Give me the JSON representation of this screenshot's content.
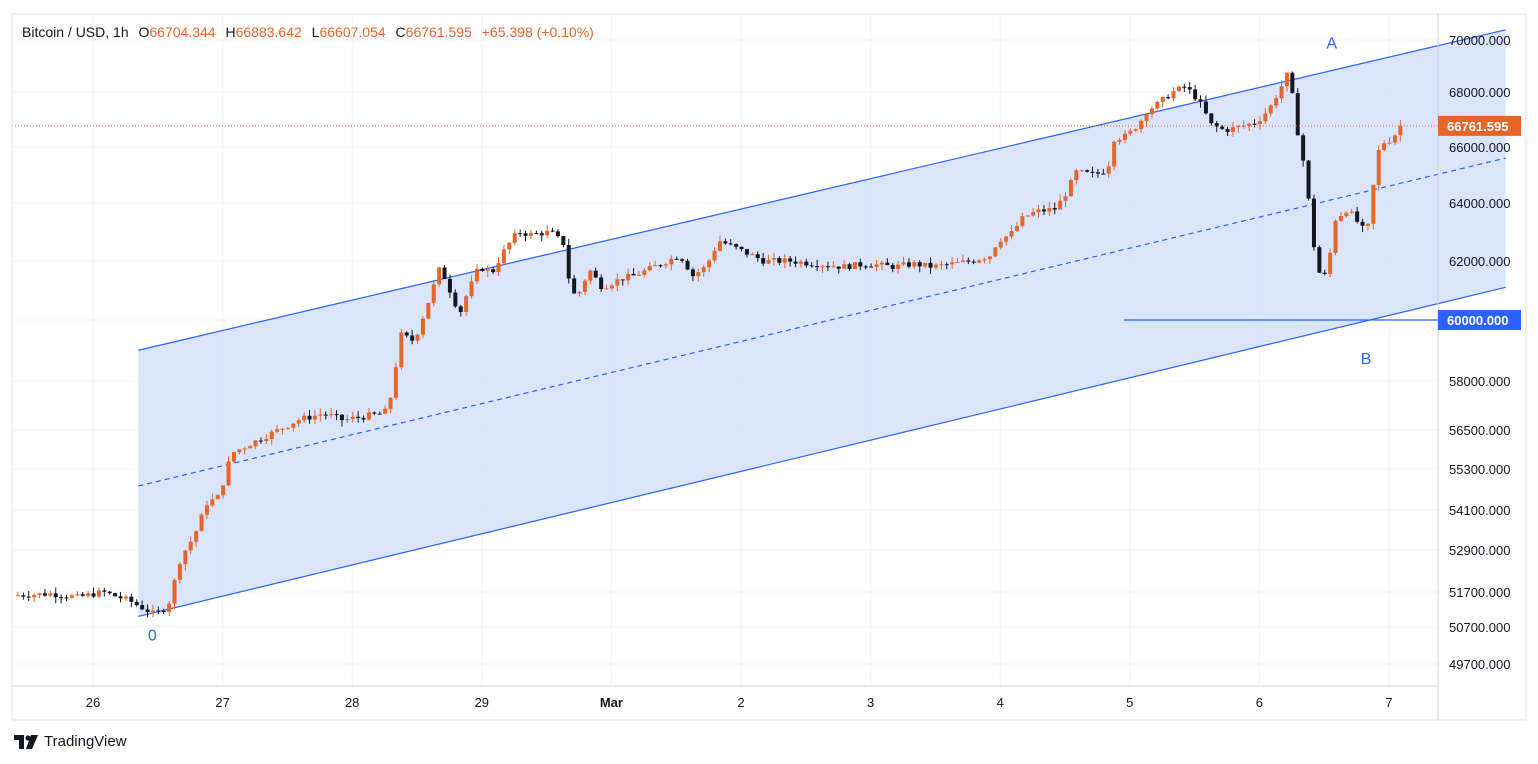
{
  "header": {
    "symbol": "Bitcoin / USD",
    "interval": "1h",
    "open_label": "O",
    "open": "66704.344",
    "high_label": "H",
    "high": "66883.642",
    "low_label": "L",
    "low": "66607.054",
    "close_label": "C",
    "close": "66761.595",
    "change": "+65.398 (+0.10%)"
  },
  "brand": {
    "name": "TradingView"
  },
  "colors": {
    "up": "#e8652a",
    "down": "#131722",
    "channel_line": "#2962ff",
    "channel_fill": "#d6e1fb",
    "last_price_label": "#e8652a",
    "level_label": "#2962ff"
  },
  "chart_data": {
    "type": "candlestick",
    "symbol": "Bitcoin / USD",
    "interval": "1h",
    "x_ticks": [
      "26",
      "27",
      "28",
      "29",
      "Mar",
      "2",
      "3",
      "4",
      "5",
      "6",
      "7"
    ],
    "x_tick_days": [
      26,
      27,
      28,
      29,
      30,
      31,
      32,
      33,
      34,
      35,
      36
    ],
    "y_ticks": [
      70000,
      68000,
      66000,
      64000,
      62000,
      60000,
      58000,
      56500,
      55300,
      54100,
      52900,
      51700,
      50700,
      49700
    ],
    "y_tick_labels": [
      "70000.000",
      "68000.000",
      "66000.000",
      "64000.000",
      "62000.000",
      "60000.000",
      "58000.000",
      "56500.000",
      "55300.000",
      "54100.000",
      "52900.000",
      "51700.000",
      "50700.000",
      "49700.000"
    ],
    "y_scale": "log",
    "last_price": 66761.595,
    "last_price_label": "66761.595",
    "horizontal_level": 60000,
    "horizontal_level_label": "60000.000",
    "channel": {
      "anchor_0": {
        "label": "0",
        "day": 26.45,
        "price": 51050
      },
      "anchor_A": {
        "label": "A",
        "day": 35.55,
        "price": 69050
      },
      "anchor_B": {
        "label": "B",
        "day": 35.8,
        "price": 59400
      },
      "upper": [
        [
          26.35,
          59000
        ],
        [
          36.9,
          70400
        ]
      ],
      "middle": [
        [
          26.35,
          54800
        ],
        [
          36.9,
          65600
        ]
      ],
      "lower": [
        [
          26.35,
          51000
        ],
        [
          36.9,
          61100
        ]
      ]
    },
    "price_path": [
      [
        25.4,
        51600
      ],
      [
        25.7,
        51650
      ],
      [
        25.9,
        51550
      ],
      [
        26.1,
        51700
      ],
      [
        26.3,
        51450
      ],
      [
        26.5,
        51050
      ],
      [
        26.6,
        51300
      ],
      [
        26.7,
        52700
      ],
      [
        26.8,
        53300
      ],
      [
        26.9,
        54300
      ],
      [
        27.0,
        54500
      ],
      [
        27.05,
        55300
      ],
      [
        27.1,
        55800
      ],
      [
        27.25,
        56100
      ],
      [
        27.4,
        56400
      ],
      [
        27.6,
        56800
      ],
      [
        27.8,
        57000
      ],
      [
        27.95,
        56800
      ],
      [
        28.1,
        56900
      ],
      [
        28.25,
        57000
      ],
      [
        28.3,
        57100
      ],
      [
        28.35,
        58300
      ],
      [
        28.4,
        59500
      ],
      [
        28.5,
        59300
      ],
      [
        28.6,
        60500
      ],
      [
        28.7,
        61800
      ],
      [
        28.85,
        60200
      ],
      [
        28.9,
        60800
      ],
      [
        29.0,
        61800
      ],
      [
        29.1,
        61600
      ],
      [
        29.2,
        62400
      ],
      [
        29.3,
        63000
      ],
      [
        29.4,
        62900
      ],
      [
        29.55,
        63000
      ],
      [
        29.65,
        62600
      ],
      [
        29.7,
        61200
      ],
      [
        29.75,
        60700
      ],
      [
        29.85,
        61700
      ],
      [
        29.95,
        61100
      ],
      [
        30.1,
        61400
      ],
      [
        30.2,
        61500
      ],
      [
        30.35,
        61800
      ],
      [
        30.55,
        62200
      ],
      [
        30.65,
        61500
      ],
      [
        30.75,
        61800
      ],
      [
        30.85,
        62700
      ],
      [
        30.95,
        62500
      ],
      [
        31.05,
        62300
      ],
      [
        31.2,
        62000
      ],
      [
        31.4,
        62000
      ],
      [
        31.6,
        61900
      ],
      [
        31.8,
        61800
      ],
      [
        32.0,
        61900
      ],
      [
        32.2,
        61800
      ],
      [
        32.35,
        61900
      ],
      [
        32.5,
        61800
      ],
      [
        32.65,
        61900
      ],
      [
        32.8,
        62000
      ],
      [
        32.95,
        62200
      ],
      [
        33.0,
        62700
      ],
      [
        33.1,
        62900
      ],
      [
        33.2,
        63500
      ],
      [
        33.3,
        63700
      ],
      [
        33.45,
        63800
      ],
      [
        33.55,
        64500
      ],
      [
        33.6,
        65100
      ],
      [
        33.75,
        65000
      ],
      [
        33.85,
        65200
      ],
      [
        33.9,
        66300
      ],
      [
        34.0,
        66400
      ],
      [
        34.1,
        66900
      ],
      [
        34.15,
        67300
      ],
      [
        34.25,
        67600
      ],
      [
        34.35,
        68000
      ],
      [
        34.45,
        68200
      ],
      [
        34.55,
        67700
      ],
      [
        34.65,
        66800
      ],
      [
        34.75,
        66600
      ],
      [
        34.85,
        66700
      ],
      [
        35.0,
        66900
      ],
      [
        35.1,
        67400
      ],
      [
        35.2,
        68300
      ],
      [
        35.25,
        68800
      ],
      [
        35.3,
        66900
      ],
      [
        35.35,
        65800
      ],
      [
        35.4,
        64100
      ],
      [
        35.45,
        62200
      ],
      [
        35.5,
        61300
      ],
      [
        35.55,
        61700
      ],
      [
        35.6,
        63400
      ],
      [
        35.7,
        63800
      ],
      [
        35.8,
        63200
      ],
      [
        35.85,
        62900
      ],
      [
        35.9,
        64600
      ],
      [
        35.95,
        66100
      ],
      [
        36.05,
        66300
      ],
      [
        36.1,
        66760
      ]
    ]
  }
}
